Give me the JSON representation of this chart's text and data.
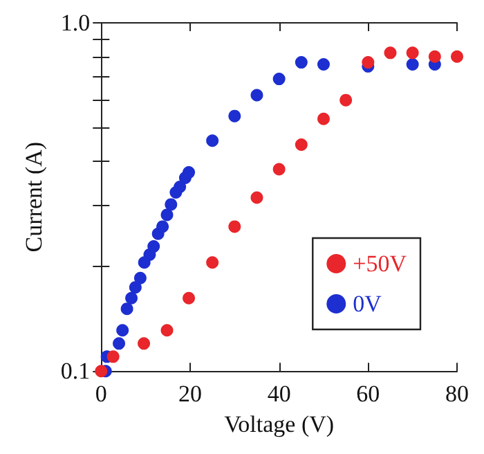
{
  "chart_data": {
    "type": "scatter",
    "xlabel": "Voltage (V)",
    "ylabel": "Current (A)",
    "log": "y",
    "grid": false,
    "legend": "right",
    "marker": "circle",
    "xlim": [
      0,
      80
    ],
    "xticks": [
      0,
      20,
      40,
      60,
      80
    ],
    "ylim": [
      0.1,
      1
    ],
    "yticks": [
      {
        "value": 0.1,
        "label": "0.1"
      },
      {
        "value": 0.2,
        "label": null
      },
      {
        "value": 0.3,
        "label": null
      },
      {
        "value": 0.4,
        "label": null
      },
      {
        "value": 0.5,
        "label": null
      },
      {
        "value": 0.6,
        "label": null
      },
      {
        "value": 0.7,
        "label": null
      },
      {
        "value": 0.8,
        "label": null
      },
      {
        "value": 0.9,
        "label": null
      },
      {
        "value": 1,
        "label": "1.0"
      }
    ],
    "series": [
      {
        "name": "+50V",
        "color": "#e8262b",
        "x": [
          0,
          2.7,
          9.6,
          14.8,
          19.7,
          25,
          30,
          35,
          40,
          45,
          50,
          55,
          60,
          65,
          70,
          75,
          80
        ],
        "values": [
          0.1,
          0.11,
          0.12,
          0.131,
          0.162,
          0.205,
          0.26,
          0.315,
          0.38,
          0.447,
          0.53,
          0.6,
          0.77,
          0.82,
          0.82,
          0.8,
          0.8
        ]
      },
      {
        "name": "0V",
        "color": "#1d2fd0",
        "x": [
          1,
          1.3,
          4,
          4.8,
          5.8,
          6.8,
          7.7,
          8.8,
          9.7,
          10.9,
          11.8,
          12.8,
          13.8,
          14.8,
          15.7,
          16.8,
          17.7,
          18.9,
          19.7,
          25,
          30,
          35,
          40,
          45,
          50,
          60,
          70,
          75
        ],
        "values": [
          0.1,
          0.11,
          0.12,
          0.131,
          0.151,
          0.162,
          0.174,
          0.185,
          0.205,
          0.216,
          0.228,
          0.248,
          0.26,
          0.281,
          0.301,
          0.326,
          0.338,
          0.359,
          0.372,
          0.459,
          0.54,
          0.62,
          0.69,
          0.77,
          0.76,
          0.75,
          0.76,
          0.76
        ]
      }
    ]
  }
}
